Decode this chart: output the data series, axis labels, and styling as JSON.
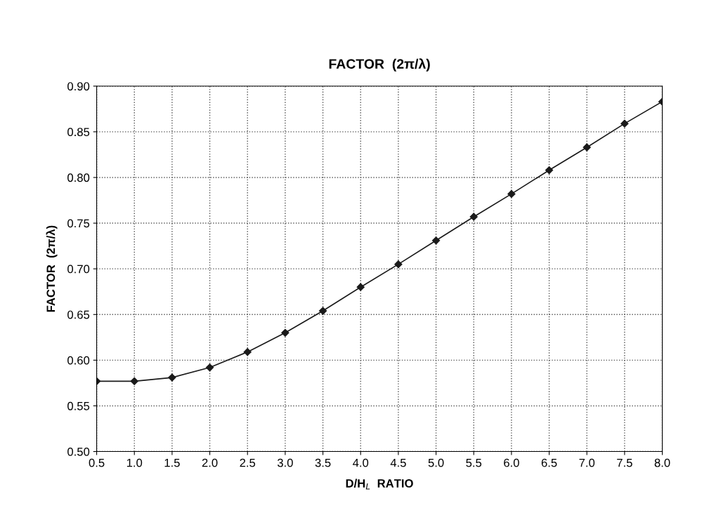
{
  "chart_data": {
    "type": "line",
    "title": "FACTOR  (2π/λ)",
    "xlabel": "D/H$_{L}$  RATIO",
    "ylabel": "FACTOR  (2π/λ)",
    "x": [
      0.5,
      1.0,
      1.5,
      2.0,
      2.5,
      3.0,
      3.5,
      4.0,
      4.5,
      5.0,
      5.5,
      6.0,
      6.5,
      7.0,
      7.5,
      8.0
    ],
    "series": [
      {
        "color": "#1a1a1a",
        "values": [
          0.577,
          0.577,
          0.581,
          0.592,
          0.609,
          0.63,
          0.654,
          0.68,
          0.705,
          0.731,
          0.757,
          0.782,
          0.808,
          0.833,
          0.859,
          0.883
        ]
      }
    ],
    "xlim": [
      0.5,
      8.0
    ],
    "xticks": [
      {
        "value": 0.5,
        "label": "0.5"
      },
      {
        "value": 1.0,
        "label": "1.0"
      },
      {
        "value": 1.5,
        "label": "1.5"
      },
      {
        "value": 2.0,
        "label": "2.0"
      },
      {
        "value": 2.5,
        "label": "2.5"
      },
      {
        "value": 3.0,
        "label": "3.0"
      },
      {
        "value": 3.5,
        "label": "3.5"
      },
      {
        "value": 4.0,
        "label": "4.0"
      },
      {
        "value": 4.5,
        "label": "4.5"
      },
      {
        "value": 5.0,
        "label": "5.0"
      },
      {
        "value": 5.5,
        "label": "5.5"
      },
      {
        "value": 6.0,
        "label": "6.0"
      },
      {
        "value": 6.5,
        "label": "6.5"
      },
      {
        "value": 7.0,
        "label": "7.0"
      },
      {
        "value": 7.5,
        "label": "7.5"
      },
      {
        "value": 8.0,
        "label": "8.0"
      }
    ],
    "ylim": [
      0.5,
      0.9
    ],
    "yticks": [
      {
        "value": 0.5,
        "label": "0.50"
      },
      {
        "value": 0.55,
        "label": "0.55"
      },
      {
        "value": 0.6,
        "label": "0.60"
      },
      {
        "value": 0.65,
        "label": "0.65"
      },
      {
        "value": 0.7,
        "label": "0.70"
      },
      {
        "value": 0.75,
        "label": "0.75"
      },
      {
        "value": 0.8,
        "label": "0.80"
      },
      {
        "value": 0.85,
        "label": "0.85"
      },
      {
        "value": 0.9,
        "label": "0.90"
      }
    ],
    "grid": true,
    "marker": "diamond",
    "line_style": "solid"
  }
}
